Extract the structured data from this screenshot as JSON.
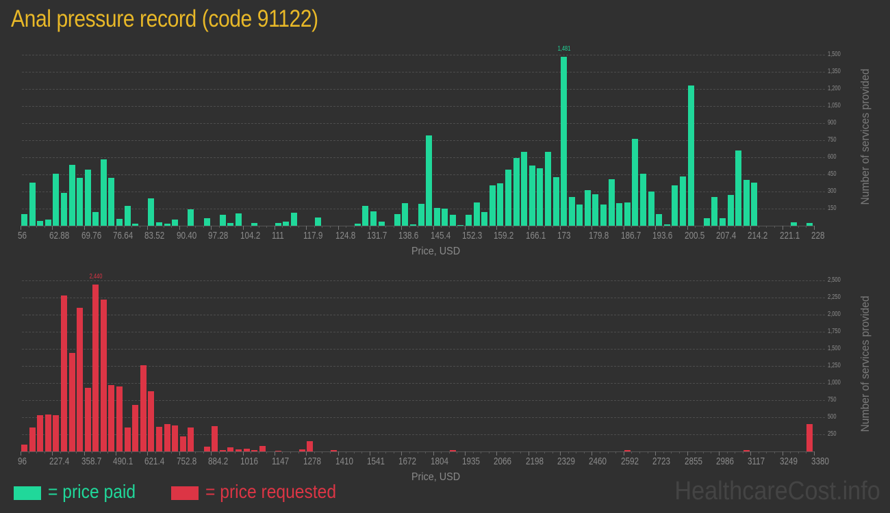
{
  "title": "Anal pressure record (code 91122)",
  "legend": {
    "paid_label": "= price paid",
    "requested_label": "= price requested",
    "paid_color": "#20d89a",
    "requested_color": "#dc3545"
  },
  "watermark": "HealthcareCost.info",
  "chart_data": [
    {
      "type": "bar",
      "title": "Price paid distribution",
      "xlabel": "Price, USD",
      "ylabel": "Number of services provided",
      "color": "#20d89a",
      "x_range": [
        56,
        228
      ],
      "bin_width": 1.72,
      "ylim": [
        0,
        1500
      ],
      "y_ticks": [
        "150",
        "300",
        "450",
        "600",
        "750",
        "900",
        "1,050",
        "1,200",
        "1,350",
        "1,500"
      ],
      "y_tick_values": [
        150,
        300,
        450,
        600,
        750,
        900,
        1050,
        1200,
        1350,
        1500
      ],
      "x_tick_labels": [
        "56",
        "62.88",
        "69.76",
        "76.64",
        "83.52",
        "90.40",
        "97.28",
        "104.2",
        "111",
        "117.9",
        "124.8",
        "131.7",
        "138.6",
        "145.4",
        "152.3",
        "159.2",
        "166.1",
        "173",
        "179.8",
        "186.7",
        "193.6",
        "200.5",
        "207.4",
        "214.2",
        "221.1",
        "228"
      ],
      "peak_label": "1,481",
      "peak_index": 68,
      "values": [
        100,
        380,
        42,
        54,
        456,
        288,
        534,
        420,
        492,
        120,
        582,
        420,
        60,
        174,
        18,
        0,
        240,
        30,
        20,
        54,
        0,
        144,
        0,
        66,
        0,
        96,
        24,
        108,
        0,
        24,
        0,
        0,
        24,
        36,
        114,
        0,
        0,
        72,
        0,
        0,
        0,
        0,
        18,
        174,
        126,
        36,
        0,
        102,
        198,
        12,
        192,
        792,
        156,
        150,
        96,
        6,
        96,
        204,
        120,
        354,
        372,
        492,
        594,
        648,
        528,
        504,
        648,
        426,
        1481,
        252,
        186,
        312,
        276,
        186,
        408,
        198,
        204,
        762,
        456,
        300,
        102,
        12,
        354,
        432,
        1230,
        0,
        66,
        252,
        66,
        270,
        660,
        402,
        378,
        0,
        0,
        0,
        0,
        30,
        0,
        24
      ]
    },
    {
      "type": "bar",
      "title": "Price requested distribution",
      "xlabel": "Price, USD",
      "ylabel": "Number of services provided",
      "color": "#dc3545",
      "x_range": [
        96,
        3380
      ],
      "bin_width": 32.84,
      "ylim": [
        0,
        2500
      ],
      "y_ticks": [
        "250",
        "500",
        "750",
        "1,000",
        "1,250",
        "1,500",
        "1,750",
        "2,000",
        "2,250",
        "2,500"
      ],
      "y_tick_values": [
        250,
        500,
        750,
        1000,
        1250,
        1500,
        1750,
        2000,
        2250,
        2500
      ],
      "x_tick_labels": [
        "96",
        "227.4",
        "358.7",
        "490.1",
        "621.4",
        "752.8",
        "884.2",
        "1016",
        "1147",
        "1278",
        "1410",
        "1541",
        "1672",
        "1804",
        "1935",
        "2066",
        "2198",
        "2329",
        "2460",
        "2592",
        "2723",
        "2855",
        "2986",
        "3117",
        "3249",
        "3380"
      ],
      "peak_label": "2,440",
      "peak_index": 9,
      "values": [
        100,
        350,
        530,
        540,
        530,
        2280,
        1440,
        2100,
        930,
        2440,
        2220,
        970,
        950,
        350,
        680,
        1260,
        880,
        360,
        400,
        380,
        220,
        350,
        0,
        70,
        370,
        20,
        60,
        35,
        45,
        25,
        80,
        0,
        15,
        0,
        0,
        30,
        150,
        0,
        0,
        20,
        0,
        0,
        0,
        0,
        0,
        0,
        0,
        0,
        0,
        0,
        0,
        0,
        0,
        0,
        20,
        0,
        0,
        0,
        0,
        0,
        0,
        0,
        0,
        0,
        0,
        0,
        0,
        0,
        0,
        0,
        0,
        0,
        0,
        0,
        0,
        0,
        20,
        0,
        0,
        0,
        0,
        0,
        0,
        0,
        0,
        0,
        0,
        0,
        0,
        0,
        0,
        20,
        0,
        0,
        0,
        0,
        0,
        0,
        0,
        400
      ]
    }
  ]
}
